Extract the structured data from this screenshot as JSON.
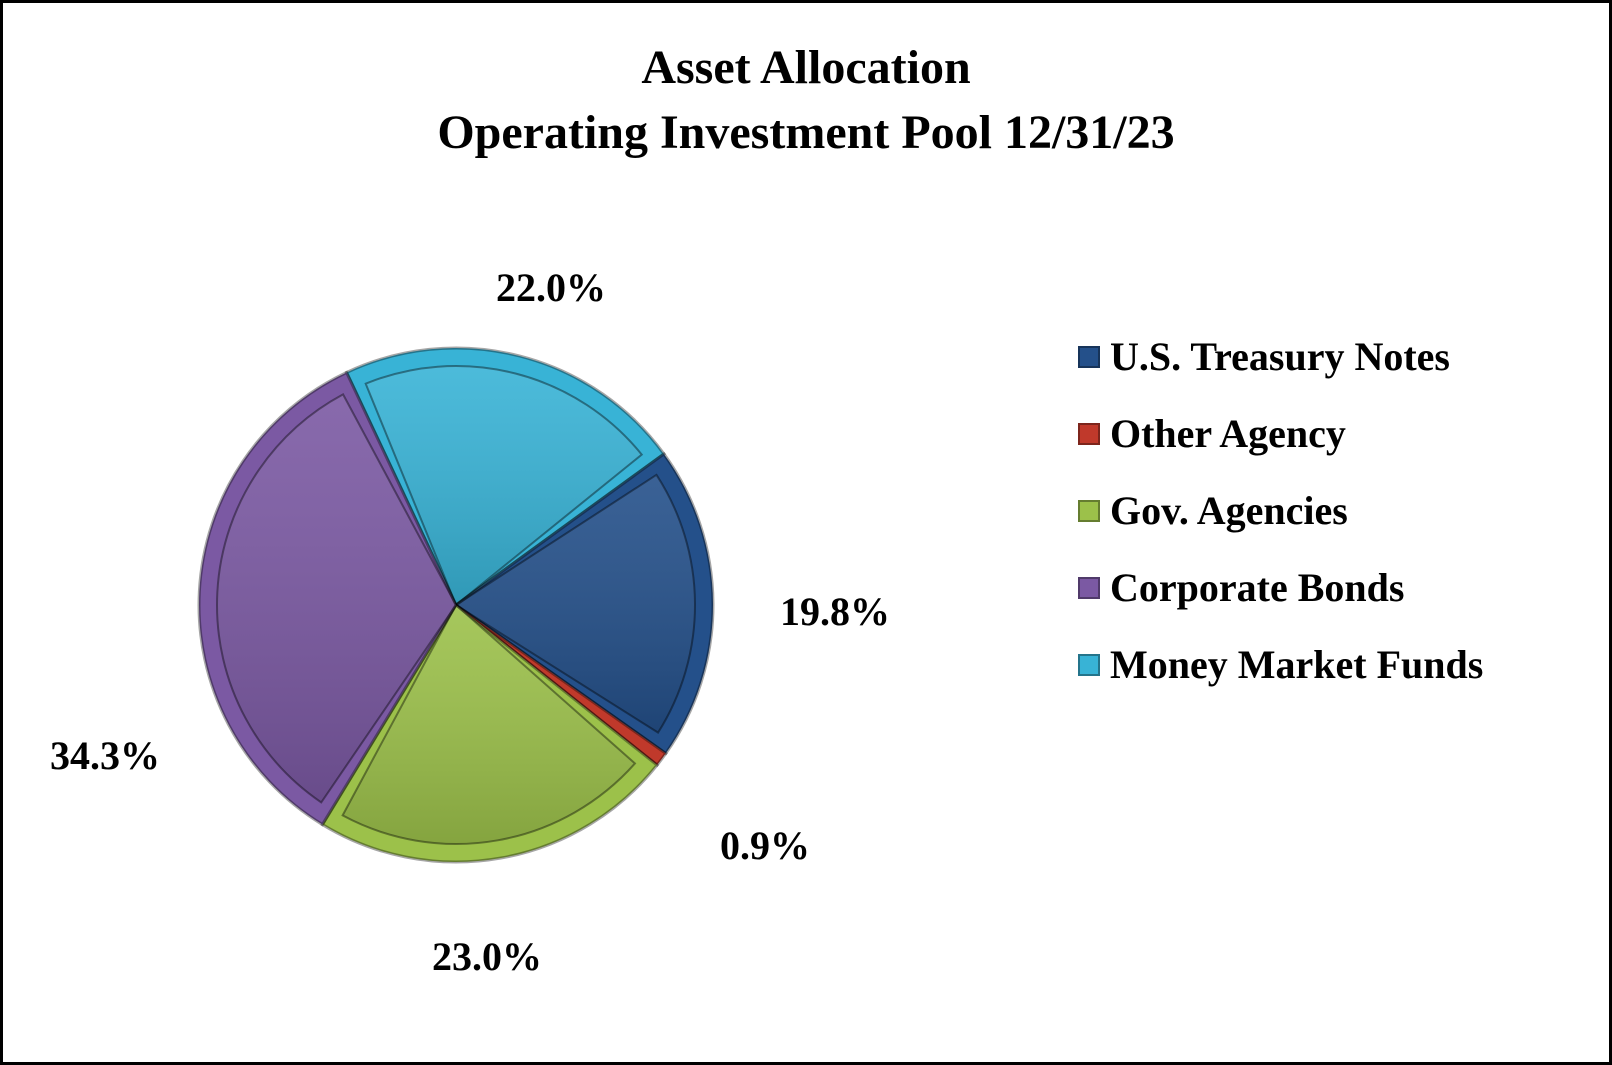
{
  "title": {
    "line1": "Asset Allocation",
    "line2": "Operating Investment Pool  12/31/23"
  },
  "chart_data": {
    "type": "pie",
    "title": "Asset Allocation Operating Investment Pool 12/31/23",
    "categories": [
      "U.S. Treasury Notes",
      "Other Agency",
      "Gov. Agencies",
      "Corporate Bonds",
      "Money Market Funds"
    ],
    "values": [
      19.8,
      0.9,
      23.0,
      34.3,
      22.0
    ],
    "value_labels": [
      "19.8%",
      "0.9%",
      "23.0%",
      "34.3%",
      "22.0%"
    ],
    "colors": [
      "#24508a",
      "#c0392b",
      "#9cc14a",
      "#7b59a3",
      "#38b3d6"
    ],
    "start_angle_deg": -25.2,
    "legend_position": "right"
  },
  "legend": {
    "items": [
      {
        "label": "U.S. Treasury Notes",
        "color": "#24508a"
      },
      {
        "label": "Other Agency",
        "color": "#c0392b"
      },
      {
        "label": "Gov. Agencies",
        "color": "#9cc14a"
      },
      {
        "label": "Corporate Bonds",
        "color": "#7b59a3"
      },
      {
        "label": "Money Market Funds",
        "color": "#38b3d6"
      }
    ]
  },
  "labels": {
    "treasury": "19.8%",
    "other": "0.9%",
    "gov": "23.0%",
    "corporate": "34.3%",
    "money": "22.0%"
  }
}
